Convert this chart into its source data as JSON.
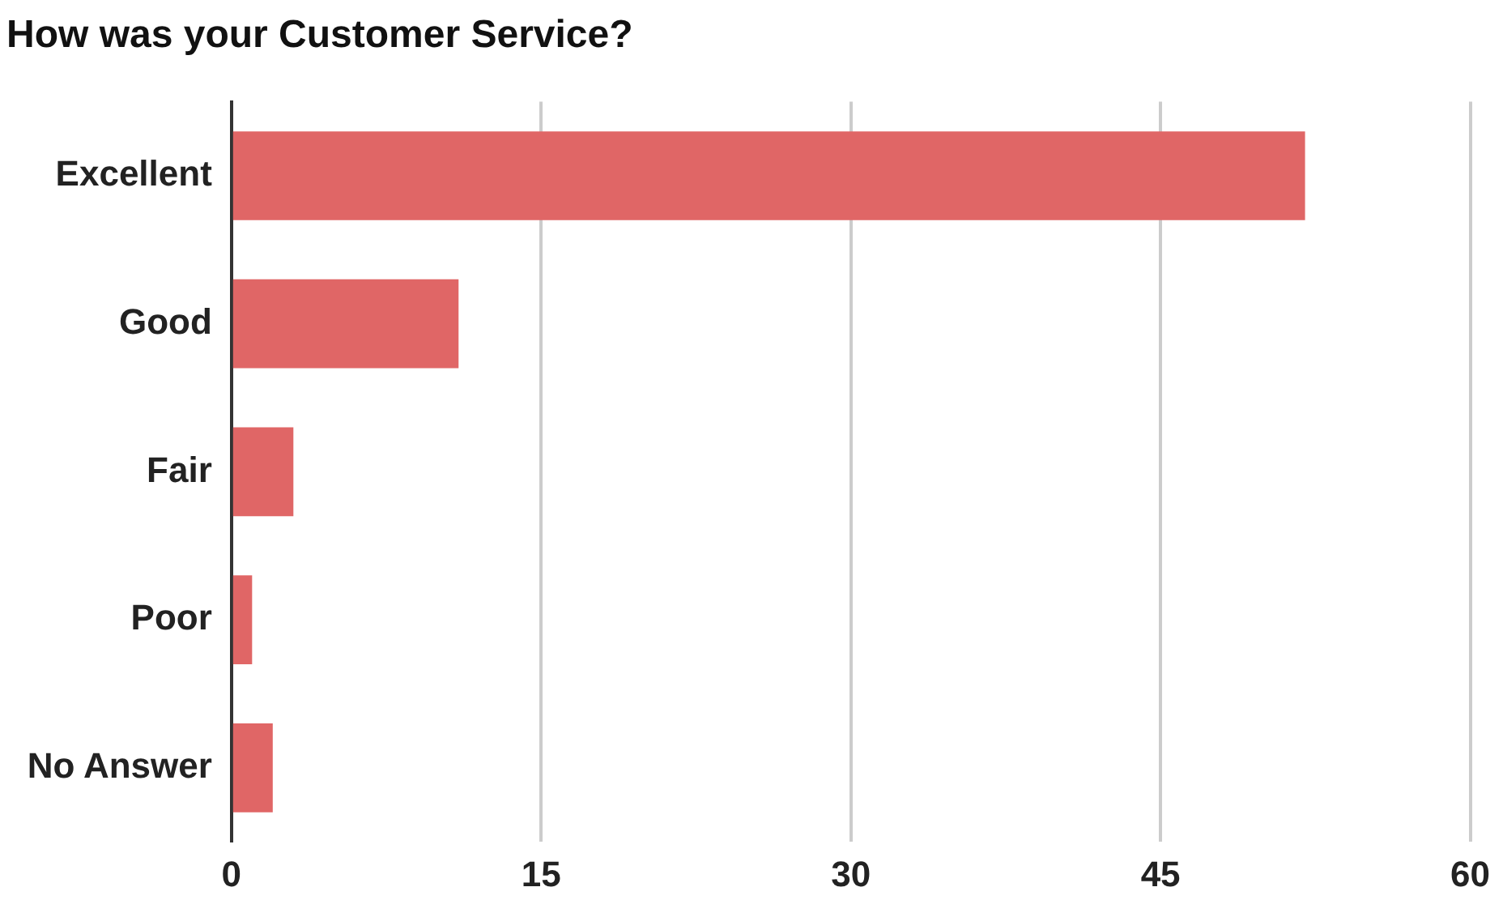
{
  "chart_data": {
    "type": "bar",
    "orientation": "horizontal",
    "title": "How was your Customer Service?",
    "categories": [
      "Excellent",
      "Good",
      "Fair",
      "Poor",
      "No Answer"
    ],
    "values": [
      52,
      11,
      3,
      1,
      2
    ],
    "color": "#e06666",
    "xlim": [
      0,
      60
    ],
    "xticks": [
      0,
      15,
      30,
      45,
      60
    ],
    "grid": "x",
    "legend": false
  }
}
